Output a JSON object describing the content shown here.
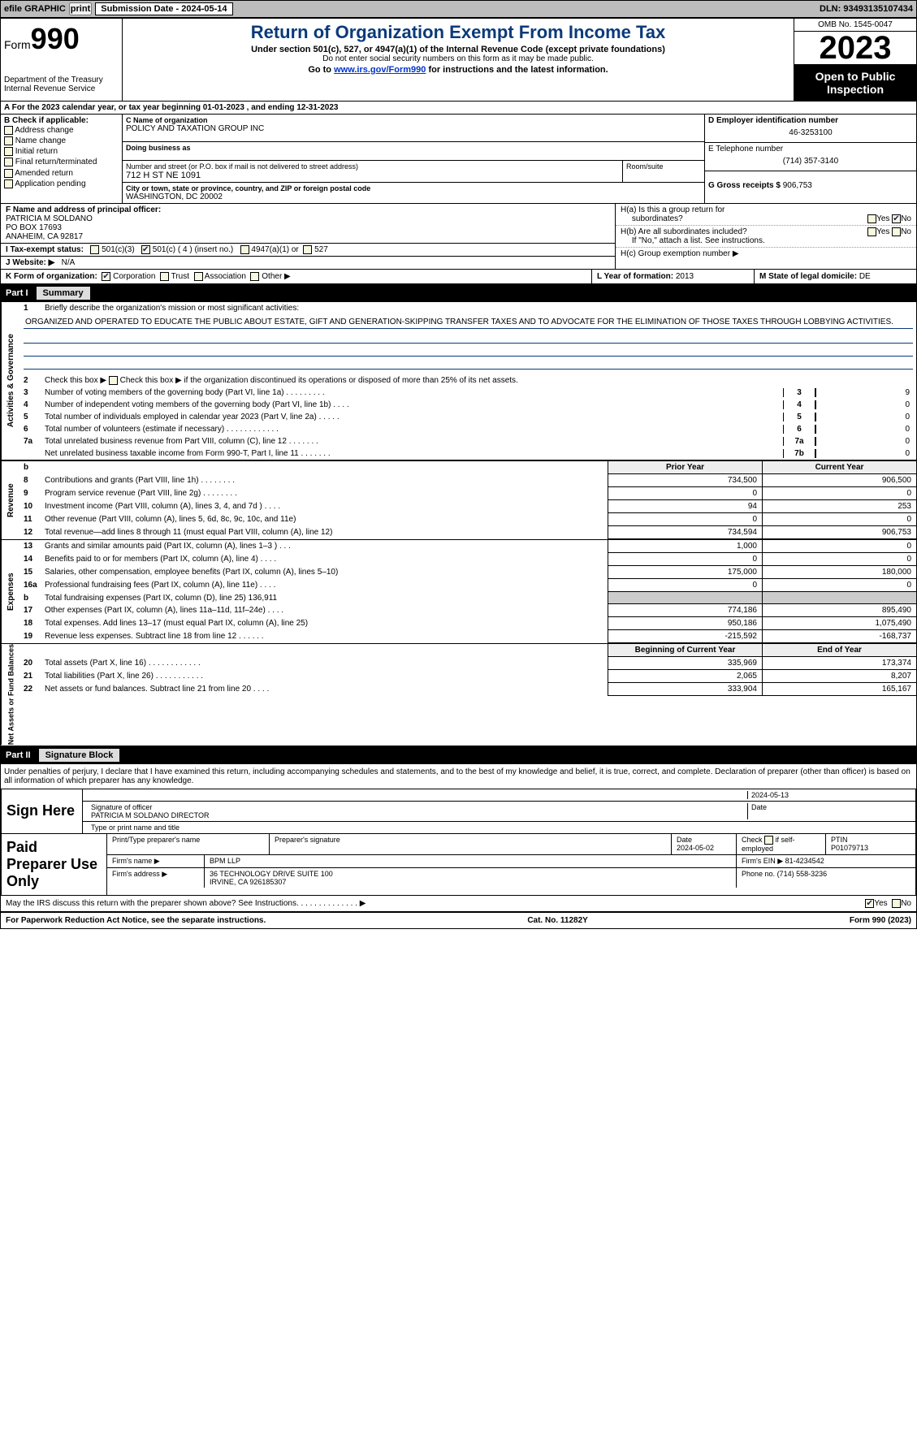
{
  "topbar": {
    "efile": "efile GRAPHIC",
    "print": "print",
    "subdate_lbl": "Submission Date - 2024-05-14",
    "dln": "DLN: 93493135107434"
  },
  "header": {
    "form": "Form",
    "n990": "990",
    "dept": "Department of the Treasury",
    "irs": "Internal Revenue Service",
    "title": "Return of Organization Exempt From Income Tax",
    "sub1": "Under section 501(c), 527, or 4947(a)(1) of the Internal Revenue Code (except private foundations)",
    "sub2": "Do not enter social security numbers on this form as it may be made public.",
    "sub3_a": "Go to ",
    "sub3_link": "www.irs.gov/Form990",
    "sub3_b": " for instructions and the latest information.",
    "omb": "OMB No. 1545-0047",
    "year": "2023",
    "open": "Open to Public Inspection"
  },
  "lineA": "A For the 2023 calendar year, or tax year beginning 01-01-2023    , and ending 12-31-2023",
  "colB": {
    "hdr": "B Check if applicable:",
    "addr": "Address change",
    "name": "Name change",
    "init": "Initial return",
    "final": "Final return/terminated",
    "amend": "Amended return",
    "app": "Application pending"
  },
  "colC": {
    "namelbl": "C Name of organization",
    "name": "POLICY AND TAXATION GROUP INC",
    "dba_lbl": "Doing business as",
    "dba": "",
    "street_lbl": "Number and street (or P.O. box if mail is not delivered to street address)",
    "street": "712 H ST NE 1091",
    "room_lbl": "Room/suite",
    "room": "",
    "city_lbl": "City or town, state or province, country, and ZIP or foreign postal code",
    "city": "WASHINGTON, DC  20002"
  },
  "colD": {
    "ein_lbl": "D Employer identification number",
    "ein": "46-3253100",
    "tel_lbl": "E Telephone number",
    "tel": "(714) 357-3140",
    "gross_lbl": "G Gross receipts $",
    "gross": "906,753"
  },
  "f": {
    "lbl": "F Name and address of principal officer:",
    "name": "PATRICIA M SOLDANO",
    "po": "PO BOX 17693",
    "city": "ANAHEIM, CA  92817"
  },
  "h": {
    "a": "H(a)  Is this a group return for",
    "a2": "subordinates?",
    "b": "H(b)  Are all subordinates included?",
    "b2": "If \"No,\" attach a list. See instructions.",
    "c": "H(c)  Group exemption number ▶",
    "yes": "Yes",
    "no": "No"
  },
  "i": {
    "lbl": "I    Tax-exempt status:",
    "c3": "501(c)(3)",
    "c": "501(c) (",
    "cn": "4",
    "c2": ") (insert no.)",
    "a1": "4947(a)(1) or",
    "s527": "527"
  },
  "j": {
    "lbl": "J   Website: ▶",
    "val": "N/A"
  },
  "k": {
    "lbl": "K Form of organization:",
    "corp": "Corporation",
    "trust": "Trust",
    "assoc": "Association",
    "other": "Other ▶"
  },
  "l": {
    "lbl": "L Year of formation:",
    "val": "2013"
  },
  "m": {
    "lbl": "M State of legal domicile:",
    "val": "DE"
  },
  "part1": {
    "n": "Part I",
    "t": "Summary"
  },
  "part2": {
    "n": "Part II",
    "t": "Signature Block"
  },
  "mission_lbl": "Briefly describe the organization's mission or most significant activities:",
  "mission": "ORGANIZED AND OPERATED TO EDUCATE THE PUBLIC ABOUT ESTATE, GIFT AND GENERATION-SKIPPING TRANSFER TAXES AND TO ADVOCATE FOR THE ELIMINATION OF THOSE TAXES THROUGH LOBBYING ACTIVITIES.",
  "l2": "Check this box ▶   if the organization discontinued its operations or disposed of more than 25% of its net assets.",
  "lines_ag": [
    {
      "n": "3",
      "t": "Number of voting members of the governing body (Part VI, line 1a)   .   .   .   .   .   .   .   .   .",
      "k": "3",
      "v": "9"
    },
    {
      "n": "4",
      "t": "Number of independent voting members of the governing body (Part VI, line 1b)   .   .   .   .",
      "k": "4",
      "v": "0"
    },
    {
      "n": "5",
      "t": "Total number of individuals employed in calendar year 2023 (Part V, line 2a)   .   .   .   .   .",
      "k": "5",
      "v": "0"
    },
    {
      "n": "6",
      "t": "Total number of volunteers (estimate if necessary)   .   .   .   .   .   .   .   .   .   .   .   .",
      "k": "6",
      "v": "0"
    },
    {
      "n": "7a",
      "t": "Total unrelated business revenue from Part VIII, column (C), line 12   .   .   .   .   .   .   .",
      "k": "7a",
      "v": "0"
    },
    {
      "n": "",
      "t": "Net unrelated business taxable income from Form 990-T, Part I, line 11   .   .   .   .   .   .   .",
      "k": "7b",
      "v": "0"
    }
  ],
  "hdr_py": "Prior Year",
  "hdr_cy": "Current Year",
  "rev_lines": [
    {
      "n": "8",
      "t": "Contributions and grants (Part VIII, line 1h)   .   .   .   .   .   .   .   .",
      "py": "734,500",
      "cy": "906,500"
    },
    {
      "n": "9",
      "t": "Program service revenue (Part VIII, line 2g)   .   .   .   .   .   .   .   .",
      "py": "0",
      "cy": "0"
    },
    {
      "n": "10",
      "t": "Investment income (Part VIII, column (A), lines 3, 4, and 7d )   .   .   .   .",
      "py": "94",
      "cy": "253"
    },
    {
      "n": "11",
      "t": "Other revenue (Part VIII, column (A), lines 5, 6d, 8c, 9c, 10c, and 11e)",
      "py": "0",
      "cy": "0"
    },
    {
      "n": "12",
      "t": "Total revenue—add lines 8 through 11 (must equal Part VIII, column (A), line 12)",
      "py": "734,594",
      "cy": "906,753"
    }
  ],
  "exp_lines": [
    {
      "n": "13",
      "t": "Grants and similar amounts paid (Part IX, column (A), lines 1–3 )   .   .   .",
      "py": "1,000",
      "cy": "0"
    },
    {
      "n": "14",
      "t": "Benefits paid to or for members (Part IX, column (A), line 4)   .   .   .   .",
      "py": "0",
      "cy": "0"
    },
    {
      "n": "15",
      "t": "Salaries, other compensation, employee benefits (Part IX, column (A), lines 5–10)",
      "py": "175,000",
      "cy": "180,000"
    },
    {
      "n": "16a",
      "t": "Professional fundraising fees (Part IX, column (A), line 11e)   .   .   .   .",
      "py": "0",
      "cy": "0"
    },
    {
      "n": "b",
      "t": "Total fundraising expenses (Part IX, column (D), line 25) 136,911",
      "py": "SHADE",
      "cy": "SHADE"
    },
    {
      "n": "17",
      "t": "Other expenses (Part IX, column (A), lines 11a–11d, 11f–24e)   .   .   .   .",
      "py": "774,186",
      "cy": "895,490"
    },
    {
      "n": "18",
      "t": "Total expenses. Add lines 13–17 (must equal Part IX, column (A), line 25)",
      "py": "950,186",
      "cy": "1,075,490"
    },
    {
      "n": "19",
      "t": "Revenue less expenses. Subtract line 18 from line 12   .   .   .   .   .   .",
      "py": "-215,592",
      "cy": "-168,737"
    }
  ],
  "hdr_boy": "Beginning of Current Year",
  "hdr_eoy": "End of Year",
  "na_lines": [
    {
      "n": "20",
      "t": "Total assets (Part X, line 16)   .   .   .   .   .   .   .   .   .   .   .   .",
      "py": "335,969",
      "cy": "173,374"
    },
    {
      "n": "21",
      "t": "Total liabilities (Part X, line 26)   .   .   .   .   .   .   .   .   .   .   .",
      "py": "2,065",
      "cy": "8,207"
    },
    {
      "n": "22",
      "t": "Net assets or fund balances. Subtract line 21 from line 20   .   .   .   .",
      "py": "333,904",
      "cy": "165,167"
    }
  ],
  "sig_decl": "Under penalties of perjury, I declare that I have examined this return, including accompanying schedules and statements, and to the best of my knowledge and belief, it is true, correct, and complete. Declaration of preparer (other than officer) is based on all information of which preparer has any knowledge.",
  "sign": {
    "here": "Sign Here",
    "date": "2024-05-13",
    "sigoff": "Signature of officer",
    "name": "PATRICIA M SOLDANO  DIRECTOR",
    "type_lbl": "Type or print name and title",
    "date_lbl": "Date"
  },
  "paid": {
    "hdr": "Paid Preparer Use Only",
    "pt_lbl": "Print/Type preparer's name",
    "ps_lbl": "Preparer's signature",
    "pdate_lbl": "Date",
    "pdate": "2024-05-02",
    "chk_lbl": "Check      if self-employed",
    "ptin_lbl": "PTIN",
    "ptin": "P01079713",
    "firm_lbl": "Firm's name   ▶",
    "firm": "BPM LLP",
    "ein_lbl": "Firm's EIN ▶",
    "ein": "81-4234542",
    "addr_lbl": "Firm's address ▶",
    "addr1": "36 TECHNOLOGY DRIVE SUITE 100",
    "addr2": "IRVINE, CA  926185307",
    "phone_lbl": "Phone no.",
    "phone": "(714) 558-3236"
  },
  "discuss": "May the IRS discuss this return with the preparer shown above? See Instructions.   .   .   .   .   .   .   .   .   .   .   .   .   . ▶",
  "footer": {
    "l": "For Paperwork Reduction Act Notice, see the separate instructions.",
    "m": "Cat. No. 11282Y",
    "r": "Form 990 (2023)"
  },
  "vlabels": {
    "ag": "Activities & Governance",
    "rev": "Revenue",
    "exp": "Expenses",
    "na": "Net Assets or Fund Balances"
  }
}
